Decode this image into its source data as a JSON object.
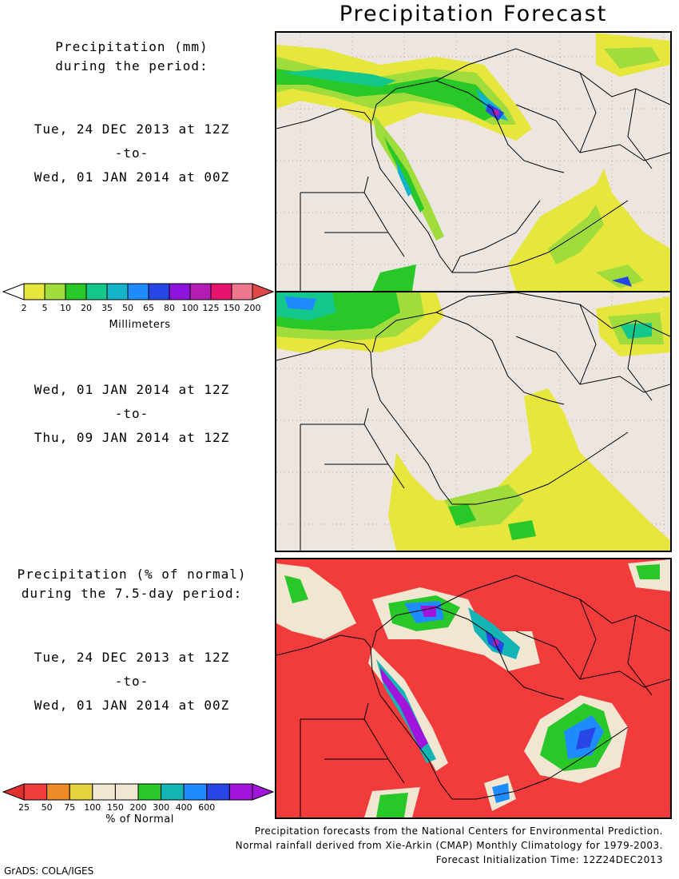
{
  "title": "Precipitation Forecast",
  "panel1": {
    "header": [
      "Precipitation (mm)",
      "during the period:"
    ],
    "start": "Tue, 24 DEC 2013 at 12Z",
    "sep": "-to-",
    "end": "Wed, 01 JAN 2014 at 00Z"
  },
  "panel2": {
    "start": "Wed, 01 JAN 2014 at 12Z",
    "sep": "-to-",
    "end": "Thu, 09 JAN 2014 at 12Z"
  },
  "panel3": {
    "header": [
      "Precipitation (% of normal)",
      "during the 7.5-day period:"
    ],
    "start": "Tue, 24 DEC 2013 at 12Z",
    "sep": "-to-",
    "end": "Wed, 01 JAN 2014 at 00Z"
  },
  "legend_mm": {
    "unit": "Millimeters",
    "ticks": [
      "2",
      "5",
      "10",
      "20",
      "35",
      "50",
      "65",
      "80",
      "100",
      "125",
      "150",
      "200"
    ],
    "colors": [
      "#e6e63c",
      "#a0dc3c",
      "#28c828",
      "#14c88c",
      "#14b4c8",
      "#1e8cff",
      "#2846e6",
      "#8c14dc",
      "#b41eb4",
      "#e6146e",
      "#f0788c"
    ]
  },
  "legend_pct": {
    "unit": "% of Normal",
    "ticks": [
      "25",
      "50",
      "75",
      "100",
      "150",
      "200",
      "300",
      "400",
      "600"
    ],
    "colors": [
      "#f03c3c",
      "#f08c28",
      "#e6d23c",
      "#f0e6d2",
      "#f0e6d2",
      "#28c828",
      "#14b4b4",
      "#1e8cff",
      "#2846e6",
      "#a014dc"
    ]
  },
  "credits": [
    "Precipitation forecasts from the National Centers for Environmental Prediction.",
    "Normal rainfall derived from Xie-Arkin (CMAP) Monthly Climatology for 1979-2003.",
    "Forecast Initialization Time: 12Z24DEC2013"
  ],
  "footer": "GrADS: COLA/IGES",
  "colors": {
    "land": "#ede5df",
    "below_normal": "#f23b3b"
  }
}
